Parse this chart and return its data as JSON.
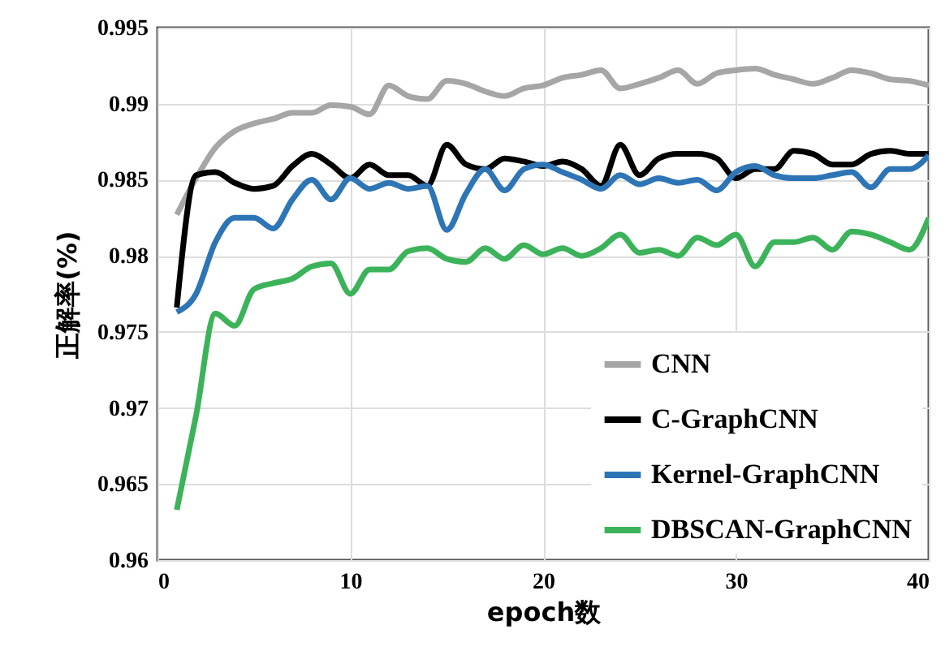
{
  "chart_data": {
    "type": "line",
    "xlabel": "epoch数",
    "ylabel": "正解率(%)",
    "x": [
      1,
      2,
      3,
      4,
      5,
      6,
      7,
      8,
      9,
      10,
      11,
      12,
      13,
      14,
      15,
      16,
      17,
      18,
      19,
      20,
      21,
      22,
      23,
      24,
      25,
      26,
      27,
      28,
      29,
      30,
      31,
      32,
      33,
      34,
      35,
      36,
      37,
      38,
      39,
      40
    ],
    "series": [
      {
        "name": "CNN",
        "color": "#a6a6a6",
        "values": [
          0.9827,
          0.9851,
          0.9871,
          0.9882,
          0.9887,
          0.989,
          0.9894,
          0.9894,
          0.9899,
          0.9898,
          0.9893,
          0.9912,
          0.9905,
          0.9903,
          0.9915,
          0.9913,
          0.9908,
          0.9905,
          0.991,
          0.9912,
          0.9917,
          0.9919,
          0.9922,
          0.991,
          0.9913,
          0.9917,
          0.9922,
          0.9913,
          0.992,
          0.9922,
          0.9923,
          0.9919,
          0.9916,
          0.9913,
          0.9917,
          0.9922,
          0.992,
          0.9916,
          0.9915,
          0.9912
        ]
      },
      {
        "name": "C-GraphCNN",
        "color": "#000000",
        "values": [
          0.9766,
          0.9853,
          0.9855,
          0.9848,
          0.9844,
          0.9846,
          0.9859,
          0.9867,
          0.986,
          0.9851,
          0.986,
          0.9853,
          0.9853,
          0.9846,
          0.9873,
          0.986,
          0.9857,
          0.9864,
          0.9862,
          0.9859,
          0.9862,
          0.9857,
          0.9846,
          0.9873,
          0.9853,
          0.9864,
          0.9867,
          0.9867,
          0.9864,
          0.9851,
          0.9857,
          0.9857,
          0.9869,
          0.9867,
          0.986,
          0.986,
          0.9867,
          0.9869,
          0.9867,
          0.9867
        ]
      },
      {
        "name": "Kernel-GraphCNN",
        "color": "#2e75b6",
        "values": [
          0.9763,
          0.9775,
          0.9809,
          0.9825,
          0.9825,
          0.9818,
          0.9837,
          0.985,
          0.9837,
          0.9851,
          0.9844,
          0.9848,
          0.9844,
          0.9846,
          0.9817,
          0.9841,
          0.9857,
          0.9843,
          0.9857,
          0.986,
          0.9855,
          0.985,
          0.9844,
          0.9853,
          0.9847,
          0.9851,
          0.9848,
          0.985,
          0.9843,
          0.9855,
          0.9859,
          0.9853,
          0.9851,
          0.9851,
          0.9853,
          0.9855,
          0.9845,
          0.9857,
          0.9857,
          0.9866
        ]
      },
      {
        "name": "DBSCAN-GraphCNN",
        "color": "#3cb35a",
        "values": [
          0.9633,
          0.9695,
          0.9762,
          0.9754,
          0.9778,
          0.9782,
          0.9785,
          0.9793,
          0.9795,
          0.9775,
          0.9791,
          0.9791,
          0.9803,
          0.9805,
          0.9798,
          0.9796,
          0.9805,
          0.9798,
          0.9807,
          0.9801,
          0.9805,
          0.98,
          0.9805,
          0.9814,
          0.9802,
          0.9804,
          0.98,
          0.9812,
          0.9807,
          0.9814,
          0.9793,
          0.9809,
          0.9809,
          0.9812,
          0.9804,
          0.9816,
          0.9814,
          0.9809,
          0.9804,
          0.9825
        ]
      }
    ],
    "xlim": [
      0,
      40
    ],
    "xticks": [
      0,
      10,
      20,
      30,
      40
    ],
    "ylim": [
      0.96,
      0.995
    ],
    "yticks": [
      0.96,
      0.965,
      0.97,
      0.975,
      0.98,
      0.985,
      0.99,
      0.995
    ],
    "grid": true,
    "legend": "bottom right",
    "marker": "none",
    "line_style": "solid"
  }
}
